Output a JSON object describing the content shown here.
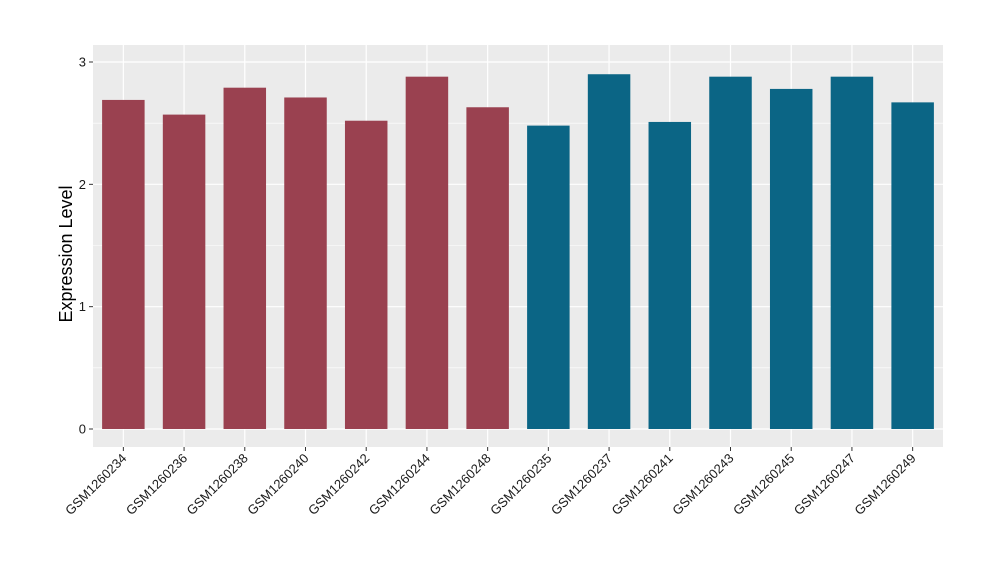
{
  "chart_data": {
    "type": "bar",
    "title": "",
    "xlabel": "",
    "ylabel": "Expression Level",
    "ylim": [
      0,
      3.05
    ],
    "yticks": [
      0,
      1,
      2,
      3
    ],
    "grid": true,
    "categories": [
      "GSM1260234",
      "GSM1260236",
      "GSM1260238",
      "GSM1260240",
      "GSM1260242",
      "GSM1260244",
      "GSM1260248",
      "GSM1260235",
      "GSM1260237",
      "GSM1260241",
      "GSM1260243",
      "GSM1260245",
      "GSM1260247",
      "GSM1260249"
    ],
    "values": [
      2.69,
      2.57,
      2.79,
      2.71,
      2.52,
      2.88,
      2.63,
      2.48,
      2.9,
      2.51,
      2.88,
      2.78,
      2.88,
      2.67
    ],
    "groups": [
      0,
      0,
      0,
      0,
      0,
      0,
      0,
      1,
      1,
      1,
      1,
      1,
      1,
      1
    ],
    "group_colors": [
      "#9a4150",
      "#0b6585"
    ],
    "panel_background": "#ebebeb",
    "grid_color": "#ffffff"
  }
}
